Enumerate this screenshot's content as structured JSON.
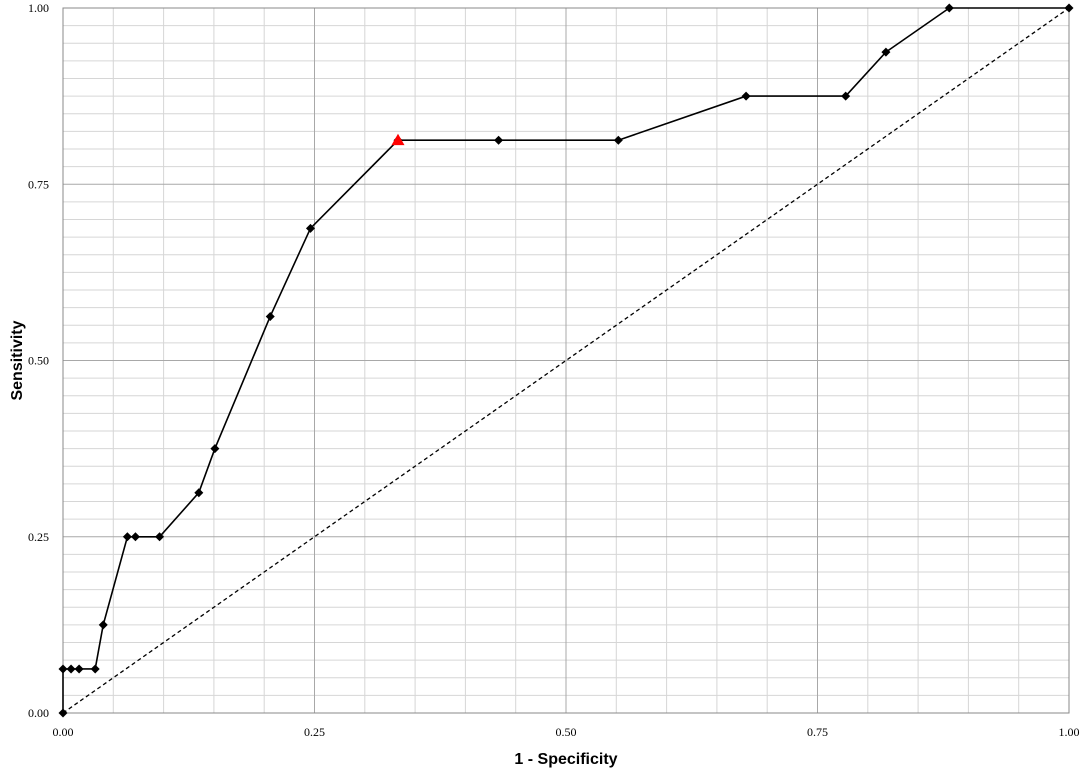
{
  "chart_data": {
    "type": "line",
    "title": "",
    "xlabel": "1 - Specificity",
    "ylabel": "Sensitivity",
    "xlim": [
      0,
      1
    ],
    "ylim": [
      0,
      1
    ],
    "grid": true,
    "legend": "none",
    "x_ticks": [
      "0.00",
      "0.25",
      "0.50",
      "0.75",
      "1.00"
    ],
    "y_ticks": [
      "0.00",
      "0.25",
      "0.50",
      "0.75",
      "1.00"
    ],
    "series": [
      {
        "color": "#000000",
        "marker": "diamond",
        "points": [
          [
            0.0,
            0.0
          ],
          [
            0.0,
            0.0625
          ],
          [
            0.008,
            0.0625
          ],
          [
            0.016,
            0.0625
          ],
          [
            0.032,
            0.0625
          ],
          [
            0.04,
            0.125
          ],
          [
            0.064,
            0.25
          ],
          [
            0.072,
            0.25
          ],
          [
            0.096,
            0.25
          ],
          [
            0.135,
            0.3125
          ],
          [
            0.151,
            0.375
          ],
          [
            0.206,
            0.5625
          ],
          [
            0.246,
            0.6875
          ],
          [
            0.333,
            0.8125
          ],
          [
            0.433,
            0.8125
          ],
          [
            0.552,
            0.8125
          ],
          [
            0.679,
            0.875
          ],
          [
            0.778,
            0.875
          ],
          [
            0.818,
            0.9375
          ],
          [
            0.881,
            1.0
          ],
          [
            1.0,
            1.0
          ]
        ]
      },
      {
        "color": "#000000",
        "style": "dashed",
        "points": [
          [
            0,
            0
          ],
          [
            1,
            1
          ]
        ]
      }
    ],
    "highlight": {
      "x": 0.333,
      "y": 0.8125,
      "marker": "triangle",
      "color": "#ff0000"
    }
  }
}
